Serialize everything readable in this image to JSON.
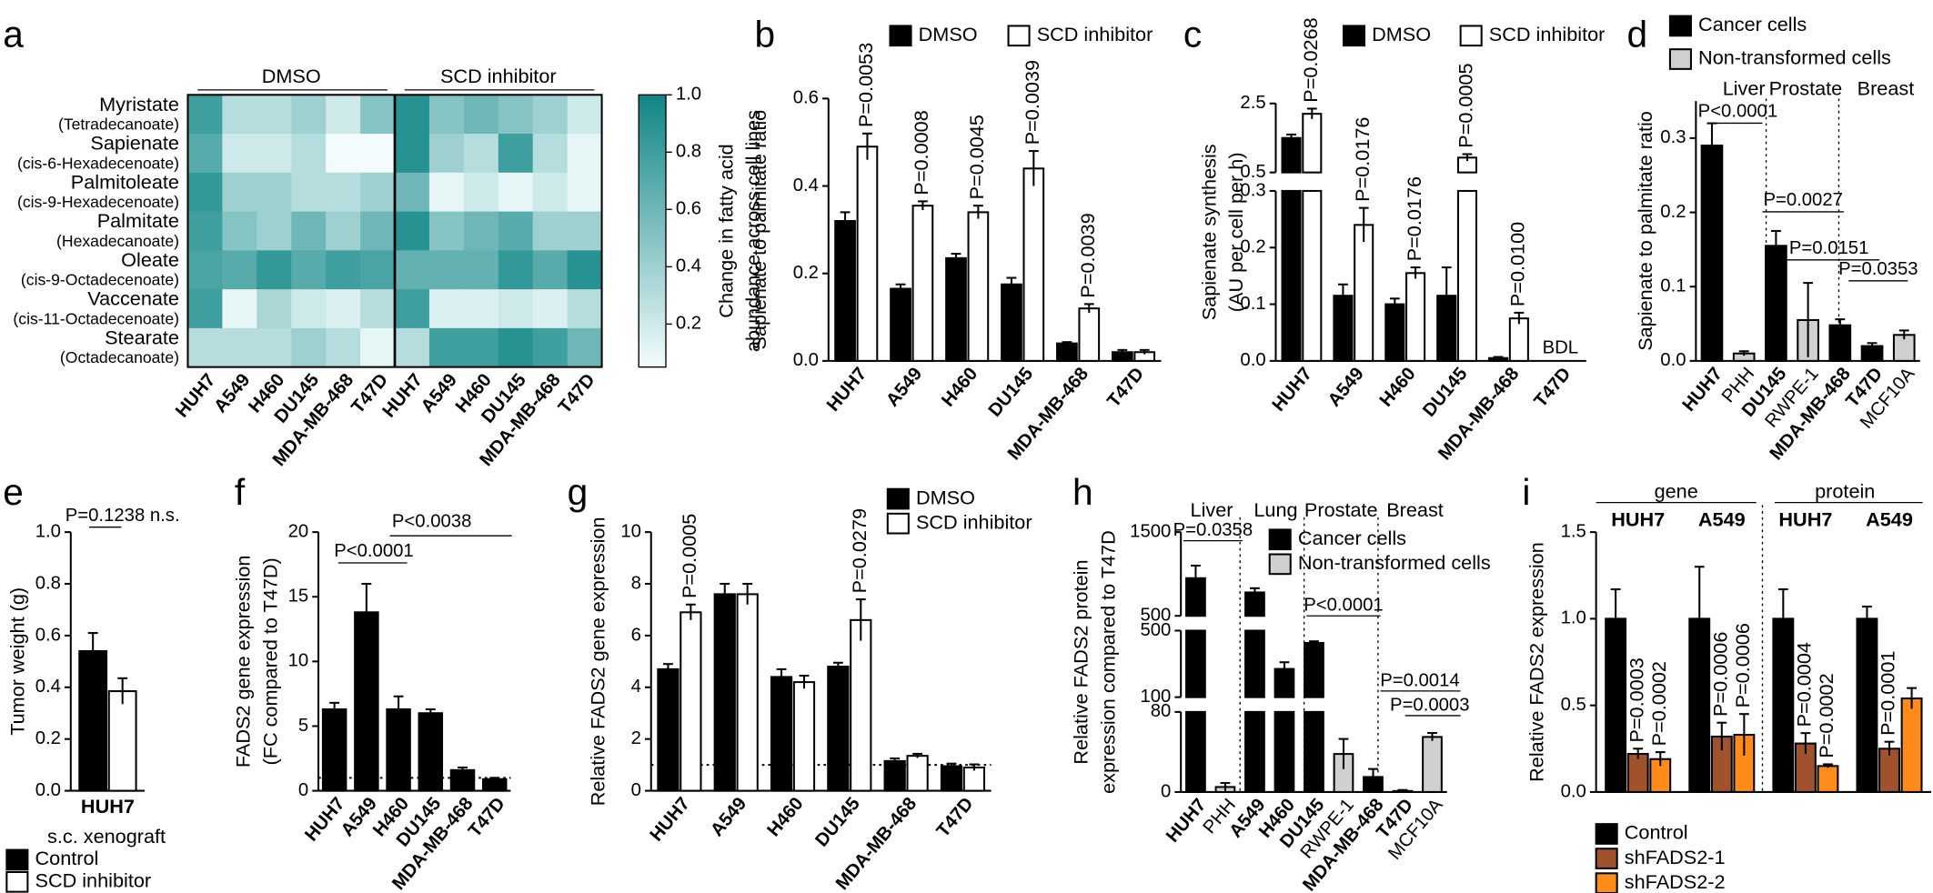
{
  "chart_data": [
    {
      "panel": "a",
      "type": "heatmap",
      "groups": [
        "DMSO",
        "SCD inhibitor"
      ],
      "rows": [
        {
          "name": "Myristate",
          "detail": "(Tetradecanoate)"
        },
        {
          "name": "Sapienate",
          "detail": "(cis-6-Hexadecenoate)"
        },
        {
          "name": "Palmitoleate",
          "detail": "(cis-9-Hexadecenoate)"
        },
        {
          "name": "Palmitate",
          "detail": "(Hexadecanoate)"
        },
        {
          "name": "Oleate",
          "detail": "(cis-9-Octadecenoate)"
        },
        {
          "name": "Vaccenate",
          "detail": "(cis-11-Octadecenoate)"
        },
        {
          "name": "Stearate",
          "detail": "(Octadecanoate)"
        }
      ],
      "columns": [
        "HUH7",
        "A549",
        "H460",
        "DU145",
        "MDA-MB-468",
        "T47D",
        "HUH7",
        "A549",
        "H460",
        "DU145",
        "MDA-MB-468",
        "T47D"
      ],
      "column_colors": [
        "#1c1c80",
        "#1c1c80",
        "#8b1c1c",
        "#8b1c1c",
        "#b8960c",
        "#b8960c",
        "#1c1c80",
        "#1c1c80",
        "#8b1c1c",
        "#8b1c1c",
        "#b8960c",
        "#b8960c"
      ],
      "values": [
        [
          0.8,
          0.3,
          0.3,
          0.4,
          0.2,
          0.5,
          0.9,
          0.5,
          0.6,
          0.5,
          0.4,
          0.2
        ],
        [
          0.7,
          0.2,
          0.2,
          0.3,
          0.05,
          0.05,
          0.9,
          0.4,
          0.3,
          0.8,
          0.3,
          0.1
        ],
        [
          0.85,
          0.4,
          0.4,
          0.3,
          0.3,
          0.4,
          0.6,
          0.1,
          0.2,
          0.1,
          0.2,
          0.1
        ],
        [
          0.8,
          0.5,
          0.4,
          0.6,
          0.4,
          0.6,
          0.9,
          0.5,
          0.6,
          0.7,
          0.4,
          0.4
        ],
        [
          0.75,
          0.7,
          0.85,
          0.7,
          0.8,
          0.75,
          0.65,
          0.65,
          0.65,
          0.85,
          0.7,
          0.9
        ],
        [
          0.8,
          0.1,
          0.35,
          0.2,
          0.15,
          0.3,
          0.8,
          0.15,
          0.15,
          0.2,
          0.15,
          0.3
        ],
        [
          0.3,
          0.3,
          0.3,
          0.4,
          0.3,
          0.1,
          0.3,
          0.8,
          0.8,
          0.9,
          0.8,
          0.6
        ]
      ],
      "clim": [
        0.05,
        1
      ],
      "cticks": [
        0.2,
        0.4,
        0.6,
        0.8,
        {
          "value": 1,
          "label": "1.0"
        }
      ],
      "colors": [
        "#f2fcfc",
        "#0f8585"
      ],
      "colorbar_label": [
        "Change in fatty acid",
        "abundance across cell lines"
      ]
    },
    {
      "panel": "b",
      "type": "bar",
      "ylabel": [
        "Sapienate to palmitate ratio"
      ],
      "categories": [
        "HUH7",
        "A549",
        "H460",
        "DU145",
        "MDA-MB-468",
        "T47D"
      ],
      "category_colors": [
        "#1c1c80",
        "#1c1c80",
        "#8b1c1c",
        "#8b1c1c",
        "#b8960c",
        "#b8960c"
      ],
      "series": [
        {
          "name": "DMSO",
          "color": "#000000",
          "values": [
            0.32,
            0.165,
            0.235,
            0.175,
            0.04,
            0.02
          ],
          "errors": [
            0.02,
            0.01,
            0.01,
            0.015,
            0.003,
            0.005
          ]
        },
        {
          "name": "SCD inhibitor",
          "color": "#ffffff",
          "values": [
            0.49,
            0.355,
            0.34,
            0.44,
            0.12,
            0.02
          ],
          "errors": [
            0.03,
            0.01,
            0.015,
            0.04,
            0.01,
            0.005
          ],
          "p_labels": [
            "P=0.0053",
            "P=0.0008",
            "P=0.0045",
            "P=0.0039",
            "P=0.0039",
            null
          ]
        }
      ],
      "ylim": [
        0,
        0.6
      ],
      "yticks": [
        {
          "value": 0,
          "label": "0.0"
        },
        0.2,
        0.4,
        0.6
      ]
    },
    {
      "panel": "c",
      "type": "bar",
      "ylabel": [
        "Sapienate synthesis",
        "(AU per cell per h)"
      ],
      "categories": [
        "HUH7",
        "A549",
        "H460",
        "DU145",
        "MDA-MB-468",
        "T47D"
      ],
      "category_colors": [
        "#1c1c80",
        "#1c1c80",
        "#8b1c1c",
        "#8b1c1c",
        "#b8960c",
        "#b8960c"
      ],
      "series": [
        {
          "name": "DMSO",
          "color": "#000000",
          "values": [
            1.5,
            0.115,
            0.1,
            0.115,
            0.005,
            null
          ],
          "errors": [
            0.1,
            0.02,
            0.01,
            0.05,
            0.002,
            null
          ]
        },
        {
          "name": "SCD inhibitor",
          "color": "#ffffff",
          "values": [
            2.2,
            0.24,
            0.155,
            0.93,
            0.075,
            null
          ],
          "errors": [
            0.15,
            0.03,
            0.01,
            0.1,
            0.01,
            null
          ],
          "p_labels": [
            "P=0.0268",
            "P=0.0176",
            "P=0.0176",
            "P=0.0005",
            "P=0.0100",
            null
          ]
        }
      ],
      "missing_label": "BDL",
      "segments": [
        {
          "ylim": [
            0,
            0.3
          ],
          "yticks": [
            {
              "value": 0,
              "label": "0.0"
            },
            0.1,
            0.2,
            0.3
          ]
        },
        {
          "ylim": [
            0.5,
            2.5
          ],
          "yticks": [
            0.5,
            2.5
          ]
        }
      ]
    },
    {
      "panel": "d",
      "type": "bar",
      "ylabel": [
        "Sapienate to palmitate ratio"
      ],
      "categories": [
        "HUH7",
        "PHH",
        "DU145",
        "RWPE-1",
        "MDA-MB-468",
        "T47D",
        "MCF10A"
      ],
      "category_colors": [
        "#1c1c80",
        "#000000",
        "#8b1c1c",
        "#000000",
        "#b8960c",
        "#b8960c",
        "#000000"
      ],
      "series": [
        {
          "name": "Cancer cells",
          "color": "#000000",
          "values": [
            0.29,
            null,
            0.155,
            null,
            0.048,
            0.02,
            null
          ],
          "errors": [
            0.03,
            null,
            0.02,
            null,
            0.008,
            0.004,
            null
          ]
        },
        {
          "name": "Non-transformed cells",
          "color": "#d0d0d0",
          "values": [
            null,
            0.01,
            null,
            0.055,
            null,
            null,
            0.035
          ],
          "errors": [
            null,
            0.003,
            null,
            0.05,
            null,
            null,
            0.006
          ]
        }
      ],
      "groups": [
        "Liver",
        "Prostate",
        "Breast"
      ],
      "comparisons": [
        "P<0.0001",
        "P=0.0027",
        "P=0.0151",
        "P=0.0353"
      ],
      "ylim": [
        0,
        0.35
      ],
      "yticks": [
        {
          "value": 0,
          "label": "0.0"
        },
        0.1,
        0.2,
        0.3
      ]
    },
    {
      "panel": "e",
      "type": "bar",
      "ylabel": [
        "Tumor weight (g)"
      ],
      "xlabel": "s.c. xenograft",
      "categories": [
        "HUH7"
      ],
      "category_colors": [
        "#1c1c80"
      ],
      "series": [
        {
          "name": "Control",
          "color": "#000000",
          "values": [
            0.54
          ],
          "errors": [
            0.07
          ]
        },
        {
          "name": "SCD inhibitor",
          "color": "#ffffff",
          "values": [
            0.385
          ],
          "errors": [
            0.05
          ]
        }
      ],
      "comparisons": [
        "P=0.1238 n.s."
      ],
      "ylim": [
        0,
        1
      ],
      "yticks": [
        {
          "value": 0,
          "label": "0.0"
        },
        0.2,
        0.4,
        0.6,
        0.8,
        {
          "value": 1,
          "label": "1.0"
        }
      ]
    },
    {
      "panel": "f",
      "type": "bar",
      "ylabel": [
        "FADS2 gene expression",
        "(FC compared to T47D)"
      ],
      "categories": [
        "HUH7",
        "A549",
        "H460",
        "DU145",
        "MDA-MB-468",
        "T47D"
      ],
      "category_colors": [
        "#1c1c80",
        "#1c1c80",
        "#8b1c1c",
        "#8b1c1c",
        "#b8960c",
        "#b8960c"
      ],
      "series": [
        {
          "color": "#000000",
          "values": [
            6.3,
            13.8,
            6.3,
            6.0,
            1.6,
            0.9
          ],
          "errors": [
            0.5,
            2.2,
            1.0,
            0.3,
            0.2,
            0.1
          ]
        }
      ],
      "reference_line": 1,
      "comparisons": [
        "P<0.0001",
        "P<0.0038"
      ],
      "ylim": [
        0,
        20
      ],
      "yticks": [
        0,
        5,
        10,
        15,
        20
      ]
    },
    {
      "panel": "g",
      "type": "bar",
      "ylabel": [
        "Relative FADS2 gene expression"
      ],
      "categories": [
        "HUH7",
        "A549",
        "H460",
        "DU145",
        "MDA-MB-468",
        "T47D"
      ],
      "category_colors": [
        "#1c1c80",
        "#1c1c80",
        "#8b1c1c",
        "#8b1c1c",
        "#b8960c",
        "#b8960c"
      ],
      "series": [
        {
          "name": "DMSO",
          "color": "#000000",
          "values": [
            4.7,
            7.6,
            4.4,
            4.8,
            1.15,
            0.95
          ],
          "errors": [
            0.2,
            0.4,
            0.3,
            0.15,
            0.1,
            0.1
          ]
        },
        {
          "name": "SCD inhibitor",
          "color": "#ffffff",
          "values": [
            6.9,
            7.6,
            4.2,
            6.6,
            1.35,
            0.9
          ],
          "errors": [
            0.3,
            0.4,
            0.25,
            0.8,
            0.08,
            0.12
          ],
          "p_labels": [
            "P=0.0005",
            null,
            null,
            "P=0.0279",
            null,
            null
          ]
        }
      ],
      "reference_line": 1,
      "ylim": [
        0,
        10
      ],
      "yticks": [
        0,
        2,
        4,
        6,
        8,
        10
      ]
    },
    {
      "panel": "h",
      "type": "bar",
      "ylabel": [
        "Relative FADS2 protein",
        "expression compared to T47D"
      ],
      "categories": [
        "HUH7",
        "PHH",
        "A549",
        "H460",
        "DU145",
        "RWPE-1",
        "MDA-MB-468",
        "T47D",
        "MCF10A"
      ],
      "category_colors": [
        "#1c1c80",
        "#000000",
        "#1c1c80",
        "#8b1c1c",
        "#8b1c1c",
        "#000000",
        "#b8960c",
        "#b8960c",
        "#000000"
      ],
      "series": [
        {
          "name": "Cancer cells",
          "color": "#000000",
          "values": [
            950,
            null,
            780,
            270,
            426,
            null,
            15,
            1,
            null
          ],
          "errors": [
            150,
            null,
            50,
            40,
            10,
            null,
            8,
            1,
            null
          ]
        },
        {
          "name": "Non-transformed cells",
          "color": "#d0d0d0",
          "values": [
            null,
            5,
            null,
            null,
            null,
            38,
            null,
            null,
            55
          ],
          "errors": [
            null,
            4,
            null,
            null,
            null,
            15,
            null,
            null,
            4
          ]
        }
      ],
      "groups": [
        "Liver",
        "Lung",
        "Prostate",
        "Breast"
      ],
      "comparisons": [
        "P=0.0358",
        "P<0.0001",
        "P=0.0014",
        "P=0.0003"
      ],
      "segments": [
        {
          "ylim": [
            0,
            80
          ],
          "yticks": [
            0,
            80
          ]
        },
        {
          "ylim": [
            100,
            500
          ],
          "yticks": [
            100,
            500
          ]
        },
        {
          "ylim": [
            500,
            1500
          ],
          "yticks": [
            500,
            1500
          ]
        }
      ]
    },
    {
      "panel": "i",
      "type": "bar",
      "ylabel": [
        "Relative FADS2 expression"
      ],
      "categories": [
        "HUH7",
        "A549",
        "HUH7",
        "A549"
      ],
      "category_colors": [
        "#1c1c80",
        "#1c1c80",
        "#1c1c80",
        "#1c1c80"
      ],
      "groups": [
        "gene",
        "protein"
      ],
      "series": [
        {
          "name": "Control",
          "color": "#000000",
          "values": [
            1.0,
            1.0,
            1.0,
            1.0
          ],
          "errors": [
            0.17,
            0.3,
            0.17,
            0.07
          ]
        },
        {
          "name": "shFADS2-1",
          "color": "#a0522d",
          "values": [
            0.22,
            0.32,
            0.28,
            0.25
          ],
          "errors": [
            0.03,
            0.08,
            0.06,
            0.04
          ],
          "p_labels": [
            "P=0.0003",
            "P=0.0006",
            "P=0.0004",
            "P=0.0001"
          ]
        },
        {
          "name": "shFADS2-2",
          "color": "#ff8c1a",
          "values": [
            0.19,
            0.33,
            0.15,
            0.54
          ],
          "errors": [
            0.04,
            0.12,
            0.01,
            0.06
          ],
          "p_labels": [
            "P=0.0002",
            "P=0.0006",
            "P=0.0002",
            null
          ]
        }
      ],
      "ylim": [
        0,
        1.5
      ],
      "yticks": [
        {
          "value": 0,
          "label": "0.0"
        },
        0.5,
        {
          "value": 1,
          "label": "1.0"
        },
        1.5
      ]
    }
  ]
}
